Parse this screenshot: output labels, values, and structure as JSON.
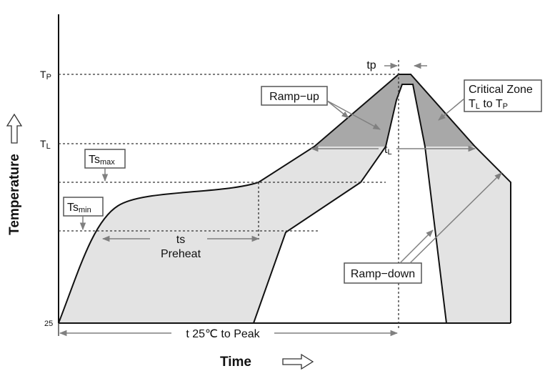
{
  "axes": {
    "x_label": "Time",
    "y_label": "Temperature",
    "y_ticks": {
      "tp_main": "T",
      "tp_sub": "P",
      "tl_main": "T",
      "tl_sub": "L",
      "origin": "25"
    }
  },
  "labels": {
    "ts_max_main": "Ts",
    "ts_max_sub": "max",
    "ts_min_main": "Ts",
    "ts_min_sub": "min",
    "ts": "ts",
    "preheat": "Preheat",
    "tp": "tp",
    "tl_main": "t",
    "tl_sub": "L",
    "ramp_up": "Ramp−up",
    "ramp_down": "Ramp−down",
    "critical_zone_line1": "Critical Zone",
    "critical_zone_tl_main": "T",
    "critical_zone_tl_sub": "L",
    "critical_zone_to": "to T",
    "critical_zone_tp_sub": "P",
    "time_to_peak": "t 25℃ to Peak"
  },
  "colors": {
    "region_fill": "#e3e3e3",
    "critical_fill": "#a8a8a8",
    "line": "#111111",
    "arrow_gray": "#808080"
  }
}
